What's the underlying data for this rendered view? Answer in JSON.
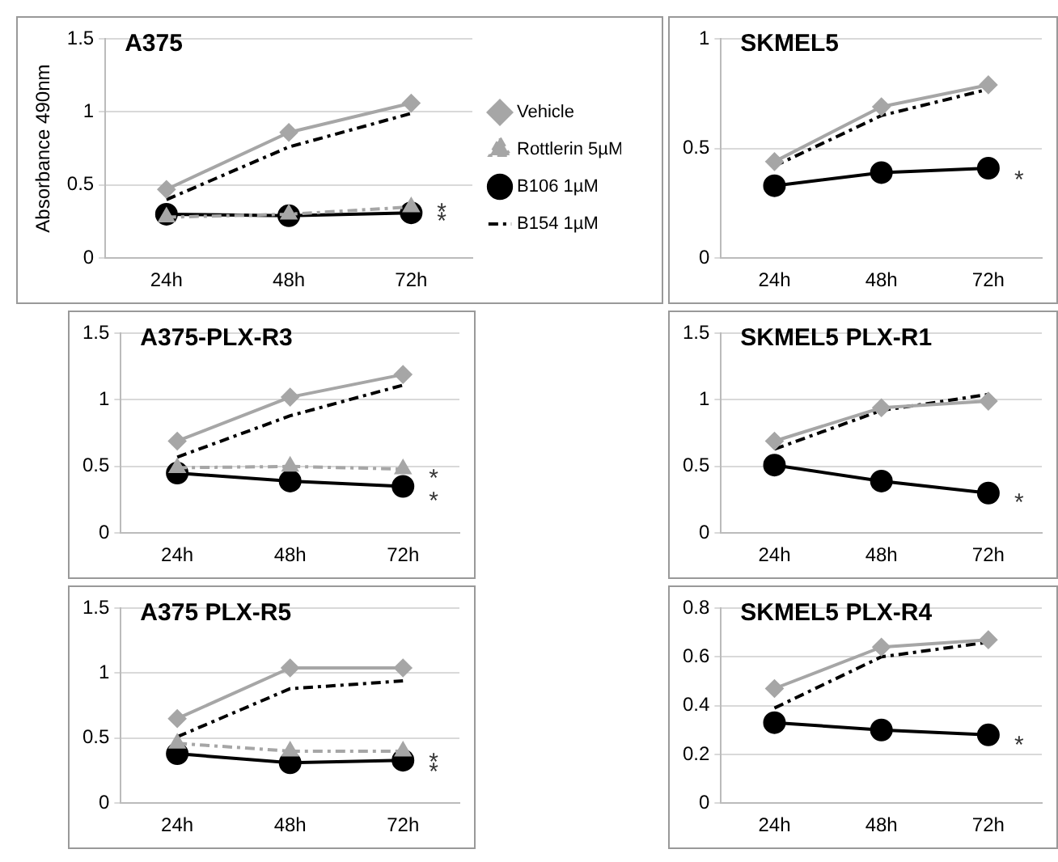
{
  "chart_data": [
    {
      "type": "line",
      "title": "A375",
      "ylabel": "Absorbance 490nm",
      "categories": [
        "24h",
        "48h",
        "72h"
      ],
      "ylim": [
        0,
        1.5
      ],
      "yticks": [
        0,
        0.5,
        1,
        1.5
      ],
      "grid": "y",
      "legend": "right",
      "series": [
        {
          "name": "Vehicle",
          "color": "#a6a6a6",
          "marker": "diamond",
          "line_style": "solid",
          "values": [
            0.47,
            0.86,
            1.06
          ]
        },
        {
          "name": "Rottlerin 5µM",
          "color": "#a6a6a6",
          "marker": "triangle",
          "line_style": "dashed",
          "values": [
            0.28,
            0.3,
            0.35
          ]
        },
        {
          "name": "B106 1µM",
          "color": "#000000",
          "marker": "circle",
          "line_style": "solid",
          "values": [
            0.3,
            0.29,
            0.31
          ]
        },
        {
          "name": "B154 1µM",
          "color": "#000000",
          "marker": "none",
          "line_style": "dashed",
          "values": [
            0.4,
            0.76,
            0.99
          ]
        }
      ],
      "annotations": [
        {
          "text": "*",
          "x": "72h",
          "y": 0.35
        },
        {
          "text": "*",
          "x": "72h",
          "y": 0.29
        }
      ]
    },
    {
      "type": "line",
      "title": "SKMEL5",
      "categories": [
        "24h",
        "48h",
        "72h"
      ],
      "ylim": [
        0,
        1
      ],
      "yticks": [
        0,
        0.5,
        1
      ],
      "grid": "y",
      "series": [
        {
          "color": "#a6a6a6",
          "marker": "diamond",
          "line_style": "solid",
          "values": [
            0.44,
            0.69,
            0.79
          ]
        },
        {
          "color": "#000000",
          "marker": "circle",
          "line_style": "solid",
          "values": [
            0.33,
            0.39,
            0.41
          ]
        },
        {
          "color": "#000000",
          "marker": "none",
          "line_style": "dashed",
          "values": [
            0.42,
            0.65,
            0.77
          ]
        }
      ],
      "annotations": [
        {
          "text": "*",
          "x": "72h",
          "y": 0.38
        }
      ]
    },
    {
      "type": "line",
      "title": "A375-PLX-R3",
      "categories": [
        "24h",
        "48h",
        "72h"
      ],
      "ylim": [
        0,
        1.5
      ],
      "yticks": [
        0,
        0.5,
        1,
        1.5
      ],
      "grid": "y",
      "series": [
        {
          "color": "#a6a6a6",
          "marker": "diamond",
          "line_style": "solid",
          "values": [
            0.69,
            1.02,
            1.19
          ]
        },
        {
          "color": "#a6a6a6",
          "marker": "triangle",
          "line_style": "dashed",
          "values": [
            0.49,
            0.5,
            0.48
          ]
        },
        {
          "color": "#000000",
          "marker": "circle",
          "line_style": "solid",
          "values": [
            0.45,
            0.39,
            0.35
          ]
        },
        {
          "color": "#000000",
          "marker": "none",
          "line_style": "dashed",
          "values": [
            0.57,
            0.88,
            1.11
          ]
        }
      ],
      "annotations": [
        {
          "text": "*",
          "x": "72h",
          "y": 0.45
        },
        {
          "text": "*",
          "x": "72h",
          "y": 0.28
        }
      ]
    },
    {
      "type": "line",
      "title": "SKMEL5 PLX-R1",
      "categories": [
        "24h",
        "48h",
        "72h"
      ],
      "ylim": [
        0,
        1.5
      ],
      "yticks": [
        0,
        0.5,
        1,
        1.5
      ],
      "grid": "y",
      "series": [
        {
          "color": "#a6a6a6",
          "marker": "diamond",
          "line_style": "solid",
          "values": [
            0.69,
            0.94,
            0.99
          ]
        },
        {
          "color": "#000000",
          "marker": "circle",
          "line_style": "solid",
          "values": [
            0.51,
            0.39,
            0.3
          ]
        },
        {
          "color": "#000000",
          "marker": "none",
          "line_style": "dashed",
          "values": [
            0.63,
            0.92,
            1.04
          ]
        }
      ],
      "annotations": [
        {
          "text": "*",
          "x": "72h",
          "y": 0.27
        }
      ]
    },
    {
      "type": "line",
      "title": "A375 PLX-R5",
      "categories": [
        "24h",
        "48h",
        "72h"
      ],
      "ylim": [
        0,
        1.5
      ],
      "yticks": [
        0,
        0.5,
        1,
        1.5
      ],
      "grid": "y",
      "series": [
        {
          "color": "#a6a6a6",
          "marker": "diamond",
          "line_style": "solid",
          "values": [
            0.65,
            1.04,
            1.04
          ]
        },
        {
          "color": "#a6a6a6",
          "marker": "triangle",
          "line_style": "dashed",
          "values": [
            0.46,
            0.4,
            0.4
          ]
        },
        {
          "color": "#000000",
          "marker": "circle",
          "line_style": "solid",
          "values": [
            0.38,
            0.31,
            0.33
          ]
        },
        {
          "color": "#000000",
          "marker": "none",
          "line_style": "dashed",
          "values": [
            0.51,
            0.88,
            0.94
          ]
        }
      ],
      "annotations": [
        {
          "text": "*",
          "x": "72h",
          "y": 0.36
        },
        {
          "text": "*",
          "x": "72h",
          "y": 0.28
        }
      ]
    },
    {
      "type": "line",
      "title": "SKMEL5 PLX-R4",
      "categories": [
        "24h",
        "48h",
        "72h"
      ],
      "ylim": [
        0,
        0.8
      ],
      "yticks": [
        0,
        0.2,
        0.4,
        0.6,
        0.8
      ],
      "grid": "y",
      "series": [
        {
          "color": "#a6a6a6",
          "marker": "diamond",
          "line_style": "solid",
          "values": [
            0.47,
            0.64,
            0.67
          ]
        },
        {
          "color": "#000000",
          "marker": "circle",
          "line_style": "solid",
          "values": [
            0.33,
            0.3,
            0.28
          ]
        },
        {
          "color": "#000000",
          "marker": "none",
          "line_style": "dashed",
          "values": [
            0.39,
            0.6,
            0.66
          ]
        }
      ],
      "annotations": [
        {
          "text": "*",
          "x": "72h",
          "y": 0.26
        }
      ]
    }
  ]
}
